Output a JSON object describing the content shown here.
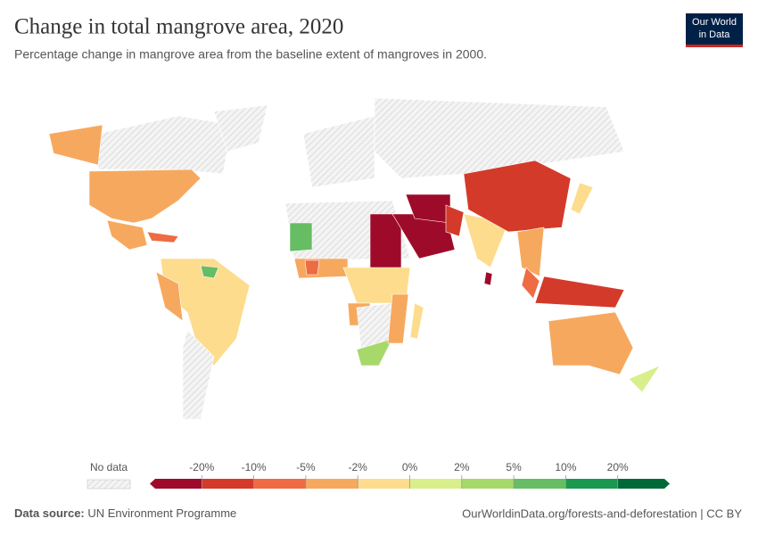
{
  "header": {
    "title": "Change in total mangrove area, 2020",
    "subtitle": "Percentage change in mangrove area from the baseline extent of mangroves in 2000.",
    "logo": [
      "Our World",
      "in Data"
    ]
  },
  "legend": {
    "no_data_label": "No data",
    "ticks": [
      {
        "value": -20,
        "label": "-20%"
      },
      {
        "value": -10,
        "label": "-10%"
      },
      {
        "value": -5,
        "label": "-5%"
      },
      {
        "value": -2,
        "label": "-2%"
      },
      {
        "value": 0,
        "label": "0%"
      },
      {
        "value": 2,
        "label": "2%"
      },
      {
        "value": 5,
        "label": "5%"
      },
      {
        "value": 10,
        "label": "10%"
      },
      {
        "value": 20,
        "label": "20%"
      }
    ],
    "colors": [
      "#9e0b2a",
      "#d33a2a",
      "#ee6b43",
      "#f6a95e",
      "#fddc8e",
      "#d9ef8b",
      "#a6d96a",
      "#66bd63",
      "#1a9850",
      "#006837"
    ]
  },
  "footer": {
    "source_label": "Data source:",
    "source": "UN Environment Programme",
    "url": "OurWorldinData.org/forests-and-deforestation | CC BY"
  }
}
